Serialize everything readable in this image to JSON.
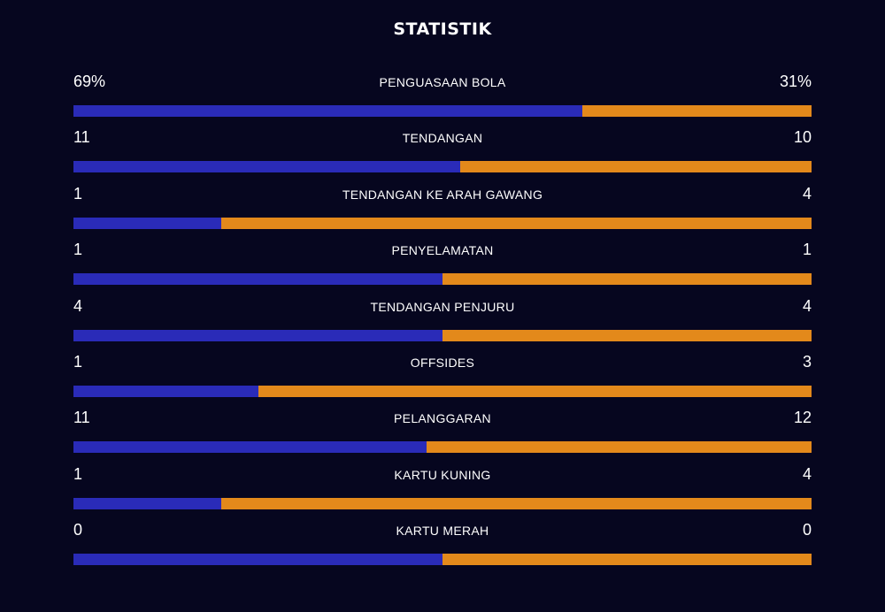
{
  "title": "STATISTIK",
  "colors": {
    "background": "#06061f",
    "home": "#2a2bb8",
    "away": "#e3891b",
    "text": "#ffffff"
  },
  "chart_data": {
    "type": "bar",
    "title": "STATISTIK",
    "categories": [
      "PENGUASAAN BOLA",
      "TENDANGAN",
      "TENDANGAN KE ARAH GAWANG",
      "PENYELAMATAN",
      "TENDANGAN PENJURU",
      "OFFSIDES",
      "PELANGGARAN",
      "KARTU KUNING",
      "KARTU MERAH"
    ],
    "rows": [
      {
        "label": "PENGUASAAN BOLA",
        "left": "69%",
        "right": "31%",
        "left_value": 69,
        "right_value": 31
      },
      {
        "label": "TENDANGAN",
        "left": "11",
        "right": "10",
        "left_value": 11,
        "right_value": 10
      },
      {
        "label": "TENDANGAN KE ARAH GAWANG",
        "left": "1",
        "right": "4",
        "left_value": 1,
        "right_value": 4
      },
      {
        "label": "PENYELAMATAN",
        "left": "1",
        "right": "1",
        "left_value": 1,
        "right_value": 1
      },
      {
        "label": "TENDANGAN PENJURU",
        "left": "4",
        "right": "4",
        "left_value": 4,
        "right_value": 4
      },
      {
        "label": "OFFSIDES",
        "left": "1",
        "right": "3",
        "left_value": 1,
        "right_value": 3
      },
      {
        "label": "PELANGGARAN",
        "left": "11",
        "right": "12",
        "left_value": 11,
        "right_value": 12
      },
      {
        "label": "KARTU KUNING",
        "left": "1",
        "right": "4",
        "left_value": 1,
        "right_value": 4
      },
      {
        "label": "KARTU MERAH",
        "left": "0",
        "right": "0",
        "left_value": 0,
        "right_value": 0
      }
    ],
    "xlabel": "",
    "ylabel": "",
    "grid": false
  }
}
